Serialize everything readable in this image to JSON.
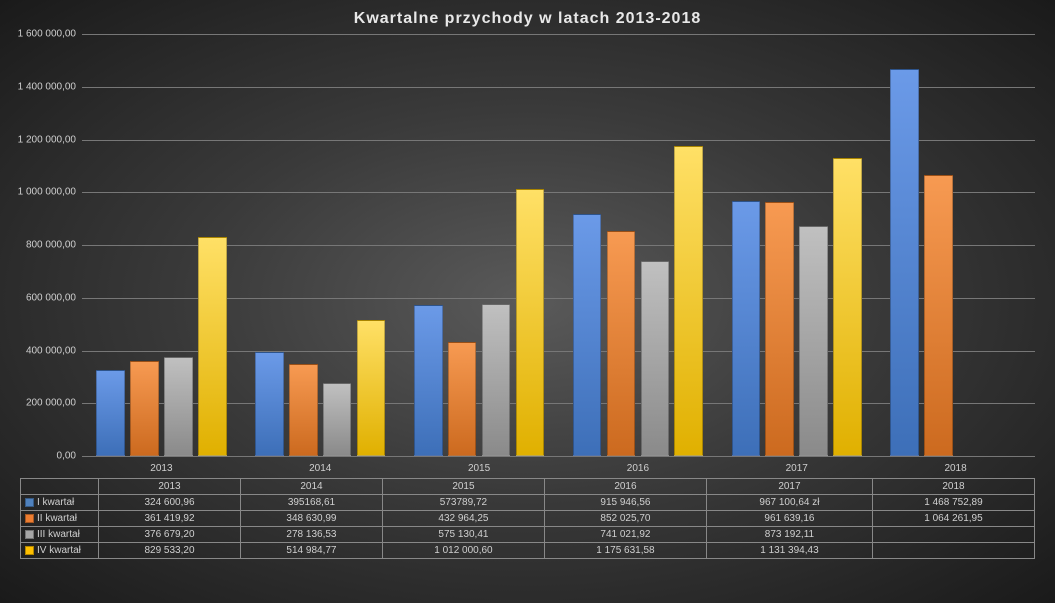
{
  "chart": {
    "type": "bar",
    "title": "Kwartalne  przychody  w latach  2013-2018",
    "title_fontsize": 16,
    "background": "radial-dark-gray",
    "grid_color": "#777777",
    "text_color": "#d0d0d0",
    "years": [
      "2013",
      "2014",
      "2015",
      "2016",
      "2017",
      "2018"
    ],
    "series": [
      {
        "name": "I kwartał",
        "color_top": "#6b9ae8",
        "color_bottom": "#3d6fb8",
        "swatch": "#4f81bd"
      },
      {
        "name": "II kwartał",
        "color_top": "#f79a52",
        "color_bottom": "#cc6a1f",
        "swatch": "#ed7d31"
      },
      {
        "name": "III kwartał",
        "color_top": "#c0c0c0",
        "color_bottom": "#8a8a8a",
        "swatch": "#a5a5a5"
      },
      {
        "name": "IV kwartał",
        "color_top": "#ffe066",
        "color_bottom": "#e0b000",
        "swatch": "#ffc000"
      }
    ],
    "values": [
      [
        324600.96,
        395168.61,
        573789.72,
        915946.56,
        967100.64,
        1468752.89
      ],
      [
        361419.92,
        348630.99,
        432964.25,
        852025.7,
        961639.16,
        1064261.95
      ],
      [
        376679.2,
        278136.53,
        575130.41,
        741021.92,
        873192.11,
        null
      ],
      [
        829533.2,
        514984.77,
        1012000.6,
        1175631.58,
        1131394.43,
        null
      ]
    ],
    "display_values": [
      [
        "324 600,96",
        "395168,61",
        "573789,72",
        "915 946,56",
        "967 100,64 zł",
        "1 468 752,89"
      ],
      [
        "361 419,92",
        "348 630,99",
        "432 964,25",
        "852 025,70",
        "961 639,16",
        "1 064 261,95"
      ],
      [
        "376 679,20",
        "278 136,53",
        "575 130,41",
        "741 021,92",
        "873 192,11",
        ""
      ],
      [
        "829 533,20",
        "514 984,77",
        "1 012 000,60",
        "1 175 631,58",
        "1 131 394,43",
        ""
      ]
    ],
    "y_axis": {
      "min": 0,
      "max": 1600000,
      "tick_step": 200000,
      "tick_labels": [
        "0,00",
        "200 000,00",
        "400 000,00",
        "600 000,00",
        "800 000,00",
        "1 000 000,00",
        "1 200 000,00",
        "1 400 000,00",
        "1 600 000,00"
      ]
    },
    "layout": {
      "group_gap_ratio": 0.18,
      "bar_gap_ratio": 0.04
    }
  }
}
